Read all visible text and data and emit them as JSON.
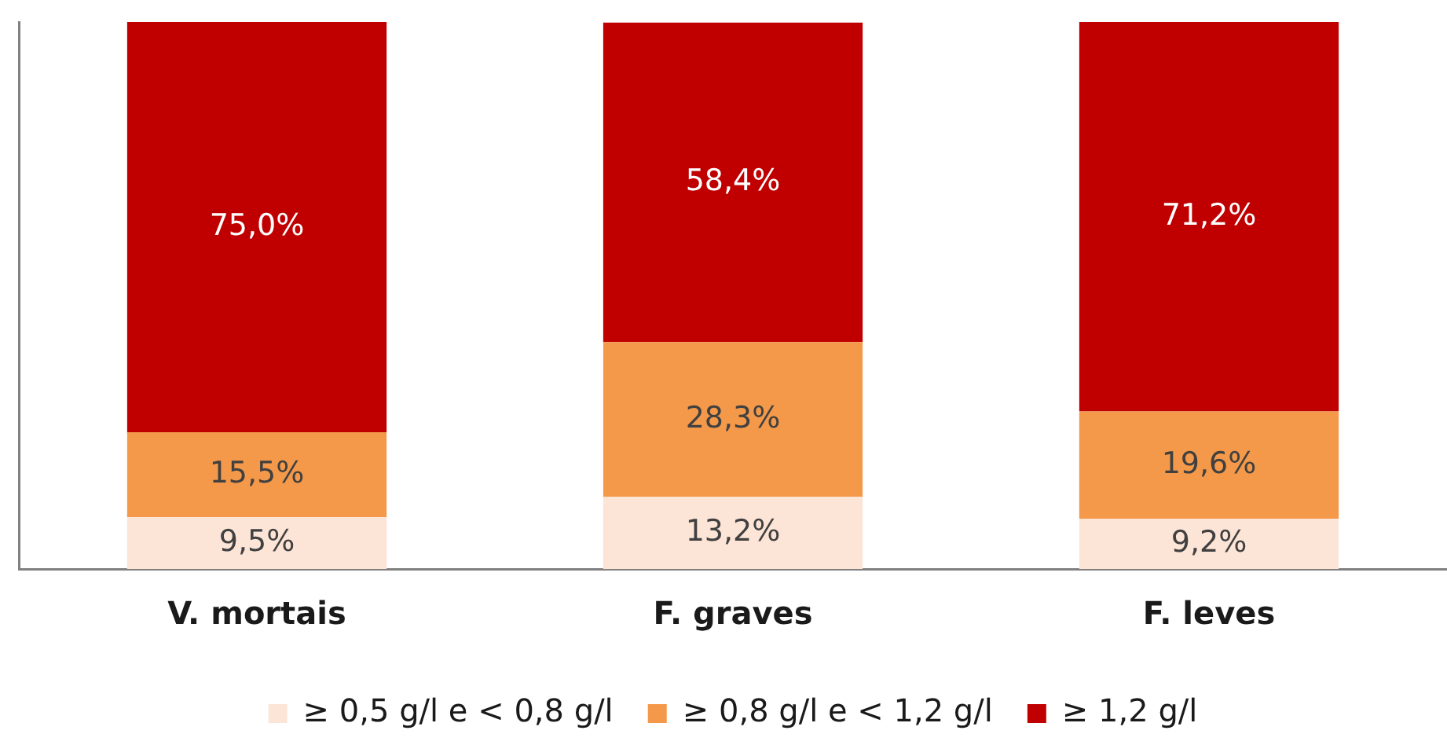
{
  "chart_data": {
    "type": "bar",
    "stacked": true,
    "categories": [
      "V. mortais",
      "F. graves",
      "F. leves"
    ],
    "series": [
      {
        "name": "≥ 0,5 g/l e < 0,8 g/l",
        "color": "#fce4d6",
        "values": [
          9.5,
          13.2,
          9.2
        ],
        "value_labels": [
          "9,5%",
          "13,2%",
          "9,2%"
        ]
      },
      {
        "name": "≥ 0,8 g/l e < 1,2 g/l",
        "color": "#f4994a",
        "values": [
          15.5,
          28.3,
          19.6
        ],
        "value_labels": [
          "15,5%",
          "28,3%",
          "19,6%"
        ]
      },
      {
        "name": "≥ 1,2 g/l",
        "color": "#c00000",
        "values": [
          75.0,
          58.4,
          71.2
        ],
        "value_labels": [
          "75,0%",
          "58,4%",
          "71,2%"
        ]
      }
    ],
    "ylim": [
      0,
      100
    ],
    "tick_labels": "x",
    "grid": false,
    "legend": "bottom"
  }
}
